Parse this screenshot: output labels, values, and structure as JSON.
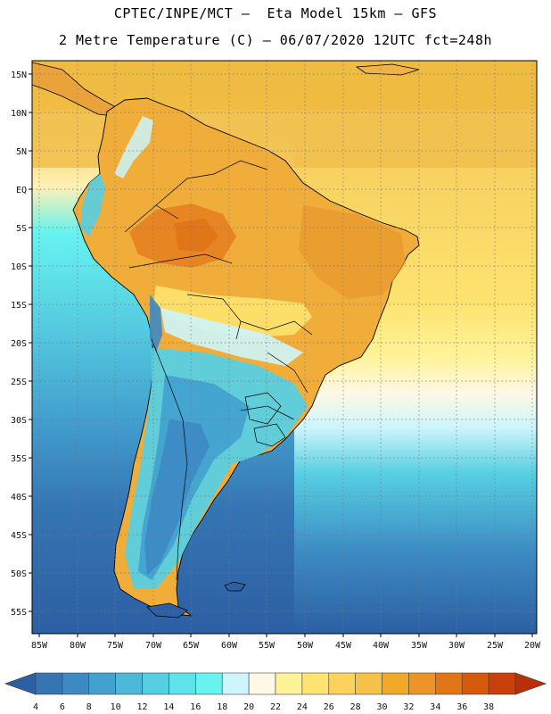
{
  "header": {
    "line1": "CPTEC/INPE/MCT –  Eta Model 15km – GFS",
    "line2": "2 Metre Temperature (C) – 06/07/2020 12UTC fct=248h"
  },
  "axes": {
    "lat_labels": [
      "15N",
      "10N",
      "5N",
      "EQ",
      "5S",
      "10S",
      "15S",
      "20S",
      "25S",
      "30S",
      "35S",
      "40S",
      "45S",
      "50S",
      "55S"
    ],
    "lon_labels": [
      "85W",
      "80W",
      "75W",
      "70W",
      "65W",
      "60W",
      "55W",
      "50W",
      "45W",
      "40W",
      "35W",
      "30W",
      "25W",
      "20W"
    ]
  },
  "colorbar": {
    "values": [
      "4",
      "6",
      "8",
      "10",
      "12",
      "14",
      "16",
      "18",
      "20",
      "22",
      "24",
      "26",
      "28",
      "30",
      "32",
      "34",
      "36",
      "38"
    ],
    "colors": [
      "#2c5fa3",
      "#3575b4",
      "#3c8ac3",
      "#43a1cf",
      "#4db8d9",
      "#57cfe2",
      "#5fe3ea",
      "#67f3f0",
      "#cdf5fb",
      "#fff8e6",
      "#fff39a",
      "#fde36f",
      "#fbd35c",
      "#f6c24a",
      "#f0aa28",
      "#ec9426",
      "#e27616",
      "#d55a0c",
      "#c9400a",
      "#ba2f08"
    ]
  }
}
